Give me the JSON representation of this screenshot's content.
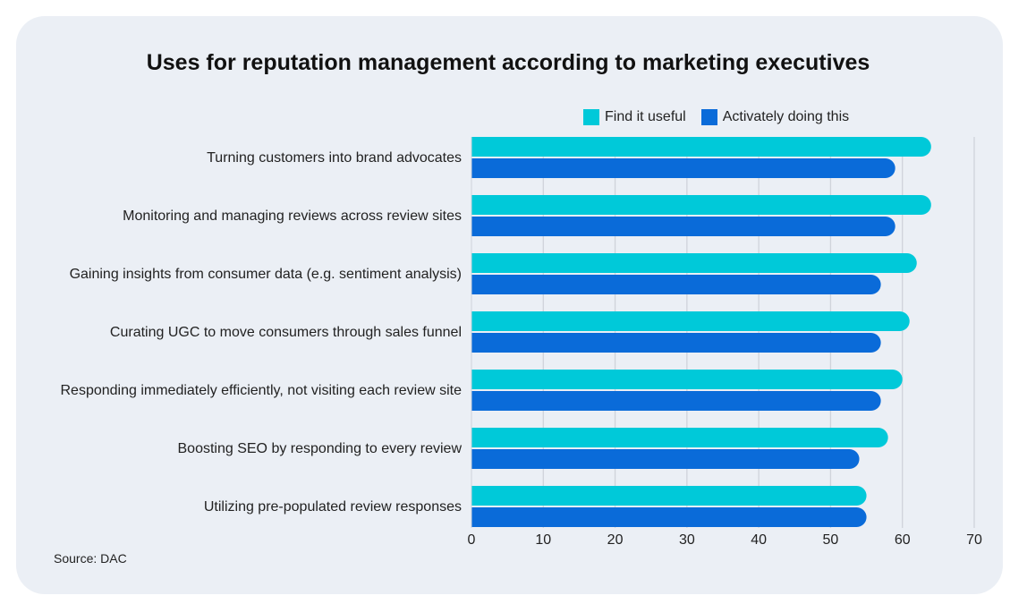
{
  "chart_data": {
    "type": "bar",
    "orientation": "horizontal",
    "title": "Uses for reputation management according to marketing executives",
    "categories": [
      "Turning customers into brand advocates",
      "Monitoring and managing reviews across review sites",
      "Gaining insights from consumer data (e.g. sentiment analysis)",
      "Curating UGC to move consumers through sales funnel",
      "Responding immediately efficiently, not visiting each review site",
      "Boosting SEO by responding to every review",
      "Utilizing pre-populated review responses"
    ],
    "series": [
      {
        "name": "Find it useful",
        "color": "#00c9d9",
        "values": [
          64,
          64,
          62,
          61,
          60,
          58,
          55
        ]
      },
      {
        "name": "Activately doing this",
        "color": "#0a6bd9",
        "values": [
          59,
          59,
          57,
          57,
          57,
          54,
          55
        ]
      }
    ],
    "xlim": [
      0,
      70
    ],
    "xticks": [
      0,
      10,
      20,
      30,
      40,
      50,
      60,
      70
    ],
    "grid": true,
    "legend_placement": "top-right",
    "source": "Source: DAC"
  }
}
